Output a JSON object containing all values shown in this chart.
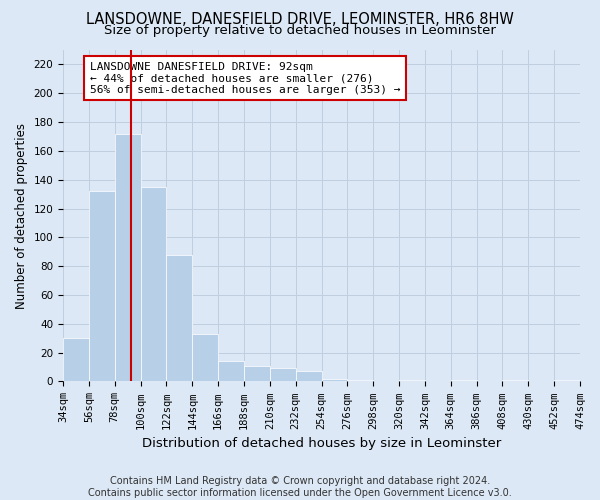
{
  "title": "LANSDOWNE, DANESFIELD DRIVE, LEOMINSTER, HR6 8HW",
  "subtitle": "Size of property relative to detached houses in Leominster",
  "xlabel": "Distribution of detached houses by size in Leominster",
  "ylabel": "Number of detached properties",
  "bar_edges": [
    34,
    56,
    78,
    100,
    122,
    144,
    166,
    188,
    210,
    232,
    254,
    276,
    298,
    320,
    342,
    364,
    386,
    408,
    430,
    452,
    474
  ],
  "bar_heights": [
    30,
    132,
    172,
    135,
    88,
    33,
    14,
    11,
    9,
    7,
    2,
    1,
    0,
    1,
    0,
    1,
    0,
    1,
    0,
    1
  ],
  "bar_color": "#b8cfe8",
  "bar_edgecolor": "#b8cfe8",
  "grid_color": "#c0cfe0",
  "background_color": "#dce8f5",
  "property_size": 92,
  "red_line_color": "#cc0000",
  "annotation_text": "LANSDOWNE DANESFIELD DRIVE: 92sqm\n← 44% of detached houses are smaller (276)\n56% of semi-detached houses are larger (353) →",
  "annotation_box_color": "#ffffff",
  "annotation_box_edgecolor": "#cc0000",
  "footer_text": "Contains HM Land Registry data © Crown copyright and database right 2024.\nContains public sector information licensed under the Open Government Licence v3.0.",
  "ylim": [
    0,
    230
  ],
  "yticks": [
    0,
    20,
    40,
    60,
    80,
    100,
    120,
    140,
    160,
    180,
    200,
    220
  ],
  "title_fontsize": 10.5,
  "subtitle_fontsize": 9.5,
  "xlabel_fontsize": 9.5,
  "ylabel_fontsize": 8.5,
  "tick_fontsize": 7.5,
  "annotation_fontsize": 8,
  "footer_fontsize": 7
}
